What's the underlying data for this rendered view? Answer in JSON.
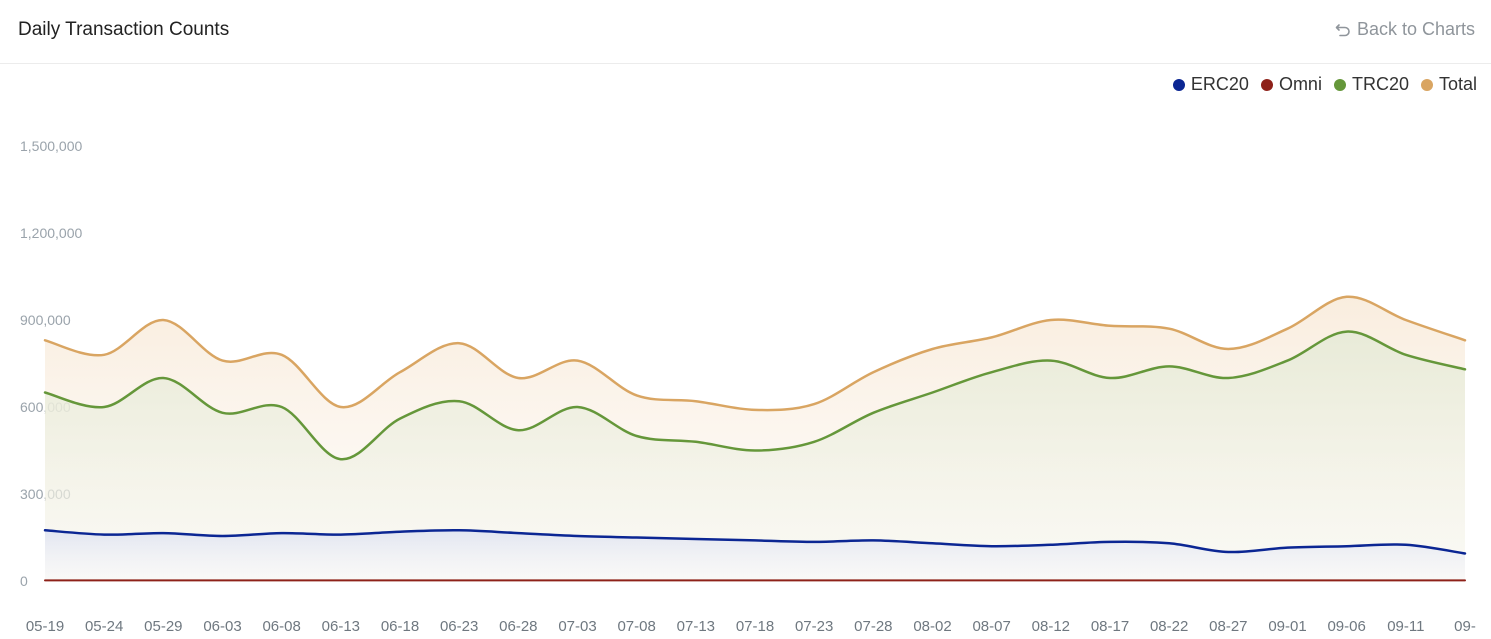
{
  "header": {
    "title": "Daily Transaction Counts",
    "back_label": "Back to Charts"
  },
  "chart_data": {
    "type": "area",
    "title": "Daily Transaction Counts",
    "xlabel": "",
    "ylabel": "",
    "ylim": [
      0,
      1500000
    ],
    "yticks": [
      "0",
      "300,000",
      "600,000",
      "900,000",
      "1,200,000",
      "1,500,000"
    ],
    "grid": false,
    "legend_position": "top-right",
    "x_tick_labels": [
      "05-19",
      "05-24",
      "05-29",
      "06-03",
      "06-08",
      "06-13",
      "06-18",
      "06-23",
      "06-28",
      "07-03",
      "07-08",
      "07-13",
      "07-18",
      "07-23",
      "07-28",
      "08-02",
      "08-07",
      "08-12",
      "08-17",
      "08-22",
      "08-27",
      "09-01",
      "09-06",
      "09-11",
      "09-"
    ],
    "x": [
      "05-19",
      "05-24",
      "05-29",
      "06-03",
      "06-08",
      "06-13",
      "06-18",
      "06-23",
      "06-28",
      "07-03",
      "07-08",
      "07-13",
      "07-18",
      "07-23",
      "07-28",
      "08-02",
      "08-07",
      "08-12",
      "08-17",
      "08-22",
      "08-27",
      "09-01",
      "09-06",
      "09-11",
      "09-"
    ],
    "series": [
      {
        "name": "ERC20",
        "color": "#0b2693",
        "values": [
          175000,
          160000,
          165000,
          155000,
          165000,
          160000,
          170000,
          175000,
          165000,
          155000,
          150000,
          145000,
          140000,
          135000,
          140000,
          130000,
          120000,
          125000,
          135000,
          130000,
          100000,
          115000,
          120000,
          125000,
          95000
        ]
      },
      {
        "name": "Omni",
        "color": "#8e2119",
        "values": [
          2000,
          2000,
          2000,
          2000,
          2000,
          2000,
          2000,
          2000,
          2000,
          2000,
          2000,
          2000,
          2000,
          2000,
          2000,
          2000,
          2000,
          2000,
          2000,
          2000,
          2000,
          2000,
          2000,
          2000,
          2000
        ]
      },
      {
        "name": "TRC20",
        "color": "#65973a",
        "values": [
          650000,
          600000,
          700000,
          580000,
          600000,
          420000,
          560000,
          620000,
          520000,
          600000,
          500000,
          480000,
          450000,
          480000,
          580000,
          650000,
          720000,
          760000,
          700000,
          740000,
          700000,
          760000,
          860000,
          780000,
          730000
        ]
      },
      {
        "name": "Total",
        "color": "#d9a562",
        "values": [
          830000,
          780000,
          900000,
          760000,
          780000,
          600000,
          720000,
          820000,
          700000,
          760000,
          640000,
          620000,
          590000,
          610000,
          720000,
          800000,
          840000,
          900000,
          880000,
          870000,
          800000,
          870000,
          980000,
          900000,
          830000
        ]
      }
    ]
  }
}
